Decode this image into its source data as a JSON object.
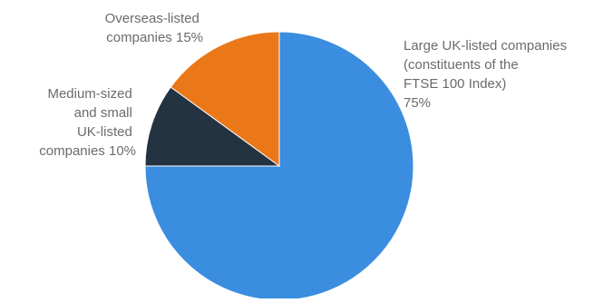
{
  "chart_data": {
    "type": "pie",
    "title": "",
    "slices": [
      {
        "label_lines": [
          "Large UK-listed companies",
          "(constituents of the",
          "FTSE 100 Index)",
          "75%"
        ],
        "value": 75,
        "color": "#3b8ddf"
      },
      {
        "label_lines": [
          "Medium-sized",
          "and small",
          "UK-listed",
          "companies 10%"
        ],
        "value": 10,
        "color": "#243342"
      },
      {
        "label_lines": [
          "Overseas-listed",
          "companies 15%"
        ],
        "value": 15,
        "color": "#ea7819"
      }
    ],
    "start_angle_deg": 0,
    "direction": "clockwise",
    "slice_border_color": "#ffffff"
  }
}
